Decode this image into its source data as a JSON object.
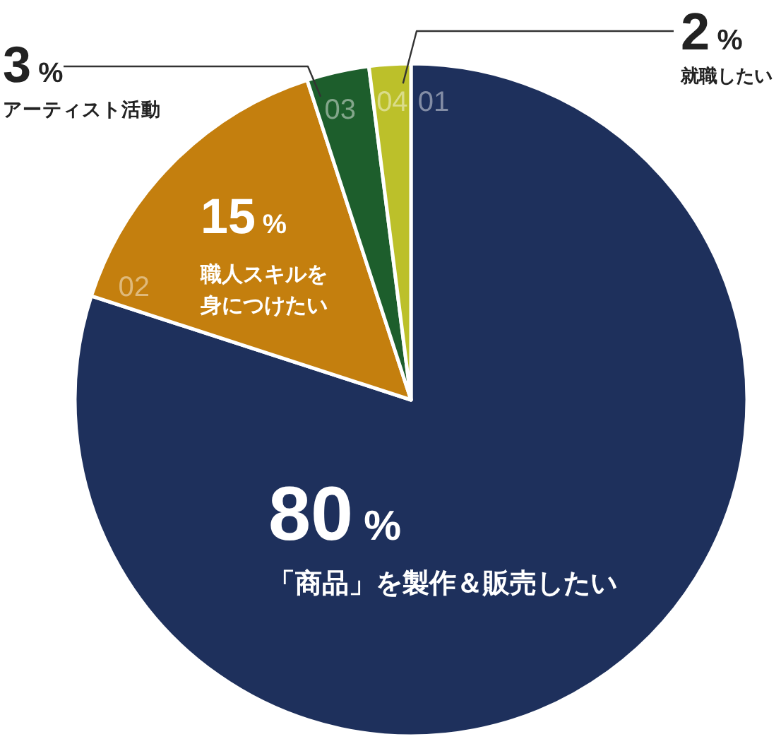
{
  "chart_data": {
    "type": "pie",
    "categories": [
      "「商品」を製作＆販売したい",
      "職人スキルを身につけたい",
      "アーティスト活動",
      "就職したい"
    ],
    "values": [
      80,
      15,
      3,
      2
    ],
    "colors": [
      "#1e305c",
      "#c47f0e",
      "#1d5e2c",
      "#bcc02a"
    ],
    "value_labels": [
      "80%",
      "15%",
      "3%",
      "2%"
    ],
    "annotations": [
      "01",
      "02",
      "03",
      "04"
    ]
  }
}
